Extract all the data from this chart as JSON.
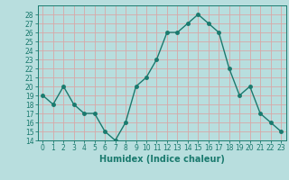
{
  "x": [
    0,
    1,
    2,
    3,
    4,
    5,
    6,
    7,
    8,
    9,
    10,
    11,
    12,
    13,
    14,
    15,
    16,
    17,
    18,
    19,
    20,
    21,
    22,
    23
  ],
  "y": [
    19,
    18,
    20,
    18,
    17,
    17,
    15,
    14,
    16,
    20,
    21,
    23,
    26,
    26,
    27,
    28,
    27,
    26,
    22,
    19,
    20,
    17,
    16,
    15
  ],
  "line_color": "#1a7a6e",
  "marker_color": "#1a7a6e",
  "bg_color": "#b8dede",
  "grid_color": "#d8a8a8",
  "xlabel": "Humidex (Indice chaleur)",
  "ylim": [
    14,
    29
  ],
  "xlim": [
    -0.5,
    23.5
  ],
  "yticks": [
    14,
    15,
    16,
    17,
    18,
    19,
    20,
    21,
    22,
    23,
    24,
    25,
    26,
    27,
    28
  ],
  "xticks": [
    0,
    1,
    2,
    3,
    4,
    5,
    6,
    7,
    8,
    9,
    10,
    11,
    12,
    13,
    14,
    15,
    16,
    17,
    18,
    19,
    20,
    21,
    22,
    23
  ],
  "tick_label_fontsize": 5.5,
  "xlabel_fontsize": 7.0,
  "line_width": 1.0,
  "marker_size": 2.5
}
